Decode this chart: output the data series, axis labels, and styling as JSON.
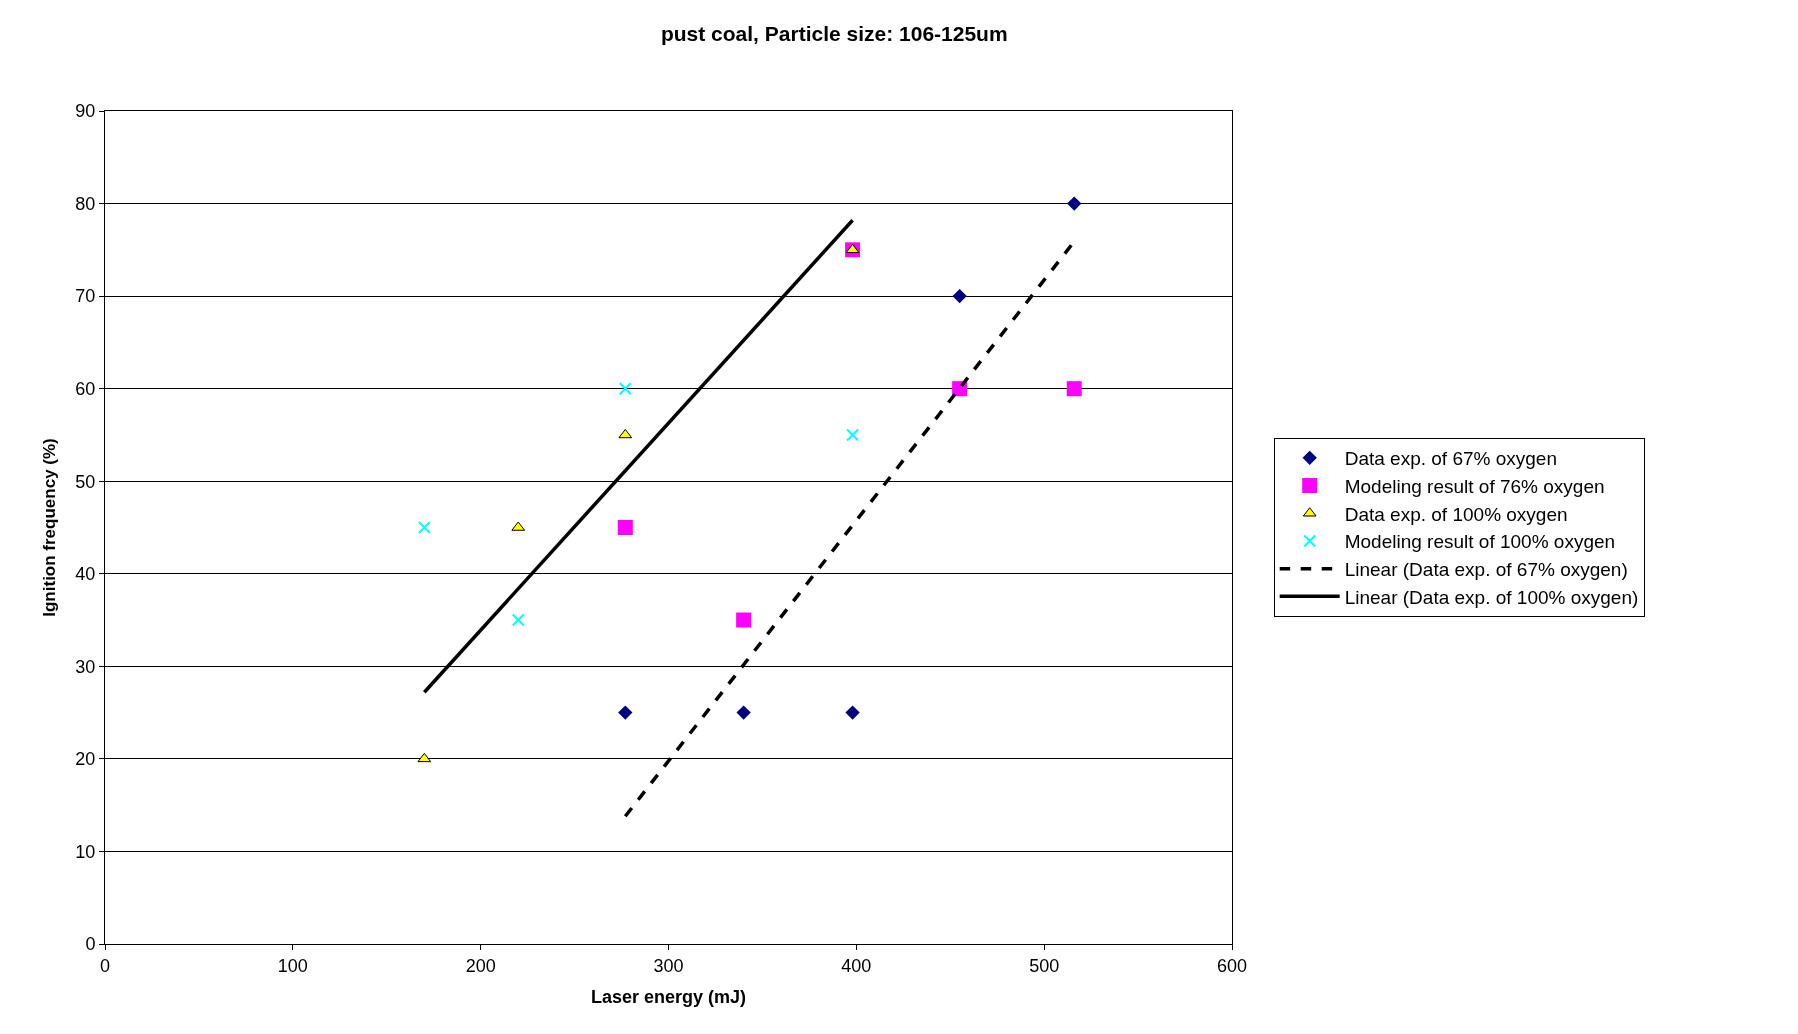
{
  "chart_data": {
    "type": "scatter",
    "title": "pust coal, Particle size: 106-125um",
    "xlabel": "Laser energy (mJ)",
    "ylabel": "Ignition frequency (%)",
    "series": [
      {
        "name": "Data exp. of 67% oxygen",
        "marker": "diamond",
        "color": "#000080",
        "x": [
          277,
          340,
          398,
          455,
          516
        ],
        "values": [
          25,
          25,
          25,
          70,
          80
        ]
      },
      {
        "name": "Modeling result of 76% oxygen",
        "marker": "square",
        "color": "#ff00ff",
        "x": [
          277,
          340,
          398,
          455,
          516
        ],
        "values": [
          45,
          35,
          75,
          60,
          60
        ]
      },
      {
        "name": "Data exp. of 100% oxygen",
        "marker": "triangle",
        "color": "#ffff00",
        "x": [
          170,
          220,
          277,
          398
        ],
        "values": [
          20,
          45,
          55,
          75
        ]
      },
      {
        "name": "Modeling result of 100% oxygen",
        "marker": "cross",
        "color": "#00ffff",
        "x": [
          170,
          220,
          277,
          398
        ],
        "values": [
          45,
          35,
          60,
          55
        ]
      },
      {
        "name": "Linear (Data exp. of 67% oxygen)",
        "type": "line",
        "line_style": "dashed",
        "color": "#000000",
        "x": [
          277,
          516
        ],
        "values": [
          13.8,
          75.9
        ]
      },
      {
        "name": "Linear (Data exp. of 100% oxygen)",
        "type": "line",
        "line_style": "solid",
        "color": "#000000",
        "x": [
          170,
          398
        ],
        "values": [
          27.2,
          78.2
        ]
      }
    ],
    "xlim": [
      0,
      600
    ],
    "xticks": [
      0,
      100,
      200,
      300,
      400,
      500,
      600
    ],
    "ylim": [
      0,
      90
    ],
    "yticks": [
      0,
      10,
      20,
      30,
      40,
      50,
      60,
      70,
      80,
      90
    ],
    "grid": "y",
    "legend": "right"
  }
}
